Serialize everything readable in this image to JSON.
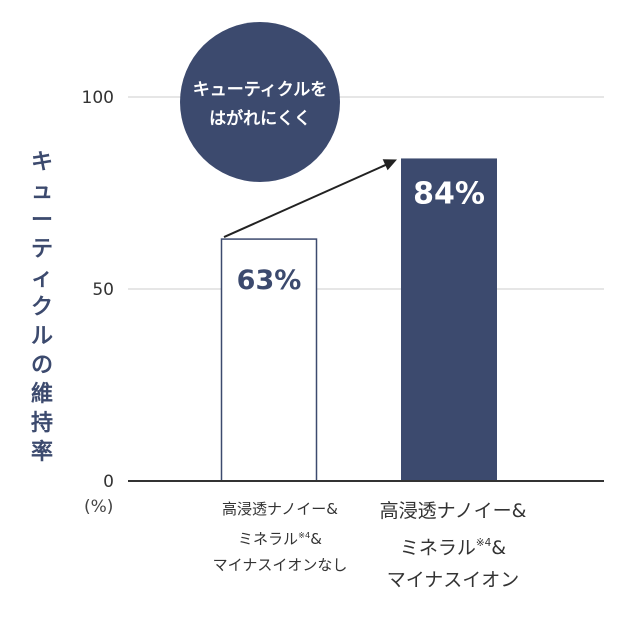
{
  "chart_data": {
    "type": "bar",
    "ylabel": "キューティクルの維持率",
    "unit": "(%)",
    "ylim": [
      0,
      100
    ],
    "yticks": [
      0,
      50,
      100
    ],
    "grid": true,
    "categories": [
      "高浸透ナノイー&ミネラル※4&マイナスイオンなし",
      "高浸透ナノイー&ミネラル※4&マイナスイオン"
    ],
    "values": [
      63,
      84
    ],
    "data_labels": [
      "63%",
      "84%"
    ],
    "annotation": "キューティクルをはがれにくく"
  },
  "categories_display": [
    {
      "line1": "高浸透ナノイー&",
      "line2a": "ミネラル",
      "sup": "※4",
      "line2b": "&",
      "line3": "マイナスイオンなし"
    },
    {
      "line1": "高浸透ナノイー&",
      "line2a": "ミネラル",
      "sup": "※4",
      "line2b": "&",
      "line3": "マイナスイオン"
    }
  ],
  "callout": {
    "line1": "キューティクルを",
    "line2": "はがれにくく"
  },
  "colors": {
    "accent": "#3c4a6e",
    "bar_outline": "#3c4a6e",
    "bar_fill_light": "#ffffff",
    "grid": "#cccccc",
    "axis": "#333333"
  }
}
